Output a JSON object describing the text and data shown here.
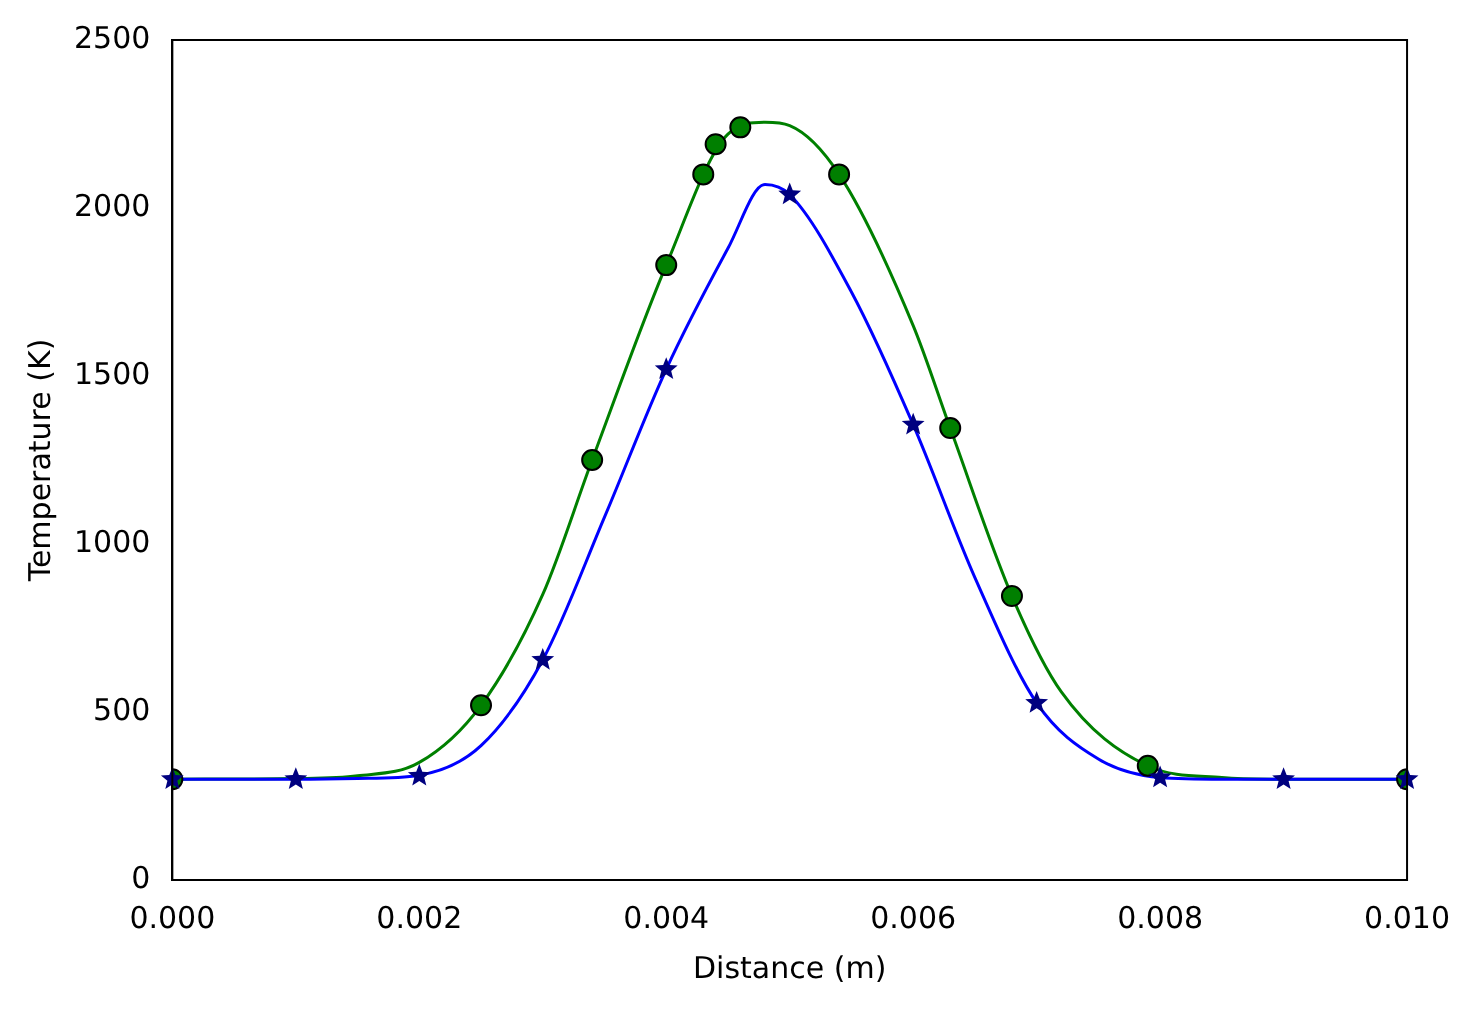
{
  "chart_data": {
    "type": "line",
    "xlabel": "Distance (m)",
    "ylabel": "Temperature (K)",
    "xlim": [
      0,
      0.01
    ],
    "ylim": [
      0,
      2500
    ],
    "xticks": [
      {
        "value": 0,
        "label": "0.000"
      },
      {
        "value": 0.002,
        "label": "0.002"
      },
      {
        "value": 0.004,
        "label": "0.004"
      },
      {
        "value": 0.006,
        "label": "0.006"
      },
      {
        "value": 0.008,
        "label": "0.008"
      },
      {
        "value": 0.01,
        "label": "0.010"
      }
    ],
    "yticks": [
      0,
      500,
      1000,
      1500,
      2000,
      2500
    ],
    "grid": false,
    "legend": false,
    "series": [
      {
        "type": "line",
        "color": "#0000ff",
        "x": [
          0,
          0.001,
          0.0015,
          0.002,
          0.0025,
          0.003,
          0.0035,
          0.004,
          0.0045,
          0.0048,
          0.005,
          0.0055,
          0.006,
          0.0065,
          0.007,
          0.0075,
          0.008,
          0.0085,
          0.009,
          0.01
        ],
        "values": [
          300,
          300,
          302,
          312,
          400,
          655,
          1080,
          1520,
          1880,
          2070,
          2040,
          1750,
          1355,
          900,
          527,
          360,
          305,
          300,
          300,
          300
        ]
      },
      {
        "type": "line",
        "color": "#008000",
        "x": [
          0,
          0.001,
          0.0015,
          0.002,
          0.0025,
          0.003,
          0.0034,
          0.004,
          0.0045,
          0.0048,
          0.005,
          0.0054,
          0.006,
          0.0063,
          0.0068,
          0.0072,
          0.0079,
          0.0085,
          0.009,
          0.01
        ],
        "values": [
          300,
          302,
          310,
          350,
          520,
          850,
          1250,
          1830,
          2220,
          2255,
          2245,
          2100,
          1650,
          1345,
          845,
          560,
          340,
          305,
          300,
          300
        ]
      },
      {
        "type": "scatter",
        "color": "#00007f",
        "marker": "star",
        "x": [
          0,
          0.001,
          0.002,
          0.003,
          0.004,
          0.005,
          0.006,
          0.007,
          0.008,
          0.009,
          0.01
        ],
        "values": [
          300,
          300,
          310,
          655,
          1520,
          2040,
          1355,
          527,
          305,
          300,
          300
        ]
      },
      {
        "type": "scatter",
        "color": "#007f00",
        "marker": "circle",
        "x": [
          0,
          0.0025,
          0.0034,
          0.004,
          0.0043,
          0.0044,
          0.0046,
          0.0054,
          0.0063,
          0.0068,
          0.0079,
          0.01
        ],
        "values": [
          300,
          520,
          1250,
          1830,
          2100,
          2190,
          2240,
          2100,
          1345,
          845,
          340,
          300
        ]
      }
    ]
  }
}
